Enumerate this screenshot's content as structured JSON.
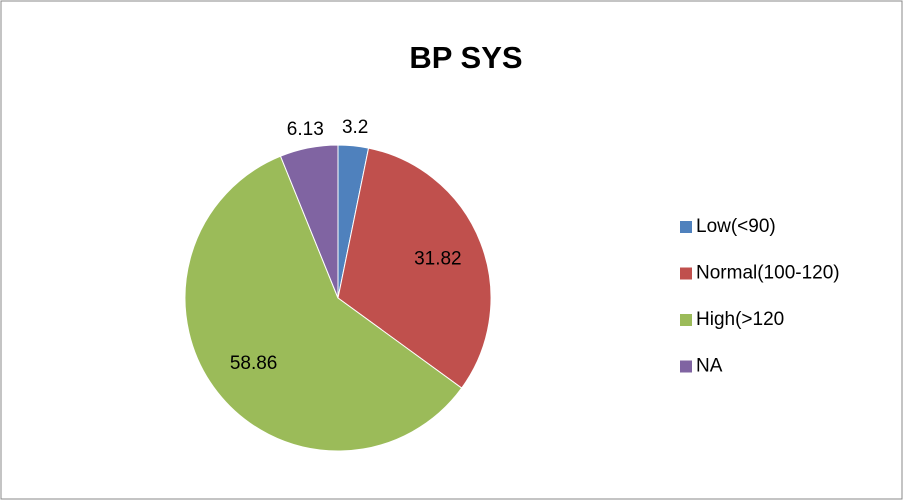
{
  "chart_data": {
    "type": "pie",
    "title": "BP SYS",
    "categories": [
      "Low(<90)",
      "Normal(100-120)",
      "High(>120",
      "NA"
    ],
    "values": [
      3.2,
      31.82,
      58.86,
      6.13
    ],
    "colors": [
      "#4f81bd",
      "#c0504d",
      "#9bbb59",
      "#8064a2"
    ],
    "legend": "right"
  }
}
